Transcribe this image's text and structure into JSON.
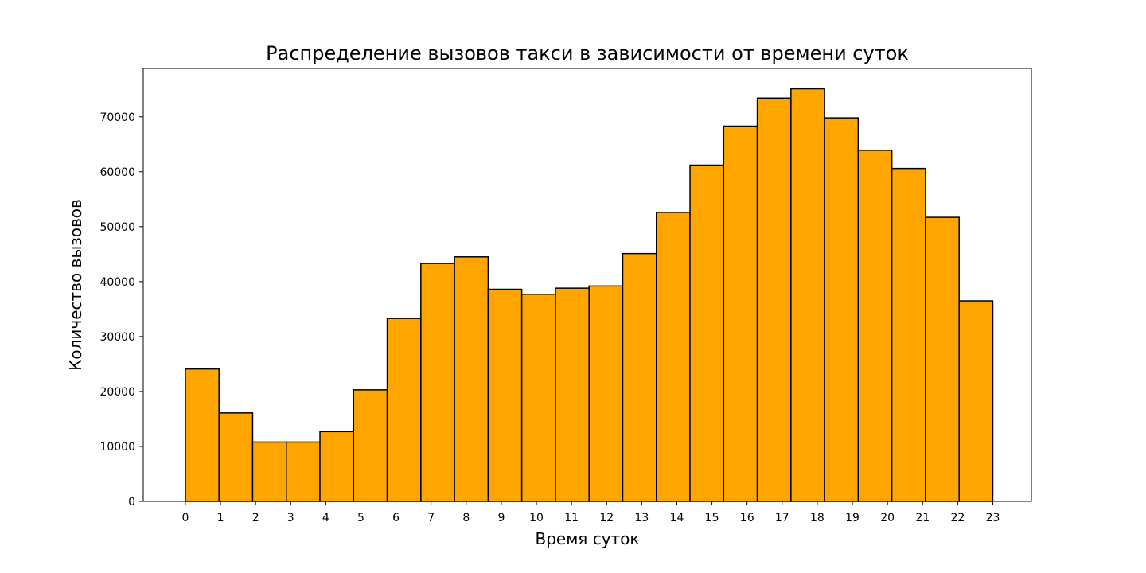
{
  "chart_data": {
    "type": "bar",
    "title": "Распределение вызовов такси в зависимости от времени суток",
    "xlabel": "Время суток",
    "ylabel": "Количество вызовов",
    "x_ticks": [
      "0",
      "1",
      "2",
      "3",
      "4",
      "5",
      "6",
      "7",
      "8",
      "9",
      "10",
      "11",
      "12",
      "13",
      "14",
      "15",
      "16",
      "17",
      "18",
      "19",
      "20",
      "21",
      "22",
      "23"
    ],
    "y_ticks": [
      "0",
      "10000",
      "20000",
      "30000",
      "40000",
      "50000",
      "60000",
      "70000"
    ],
    "values": [
      24100,
      16100,
      10800,
      10800,
      12700,
      20300,
      33300,
      43300,
      44500,
      38600,
      37700,
      38800,
      39200,
      45100,
      52600,
      61200,
      68300,
      73400,
      75100,
      69800,
      63900,
      60600,
      51700,
      36500
    ],
    "xlim": [
      -1.2,
      24.1
    ],
    "ylim": [
      0,
      78800
    ],
    "grid": false,
    "bar_color": "#ffa500",
    "edge_color": "#000000"
  }
}
